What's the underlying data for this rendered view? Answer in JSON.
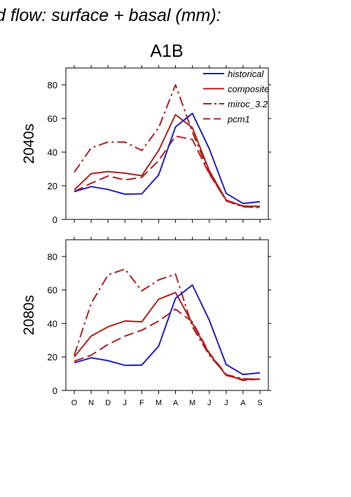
{
  "figure": {
    "title": "d flow: surface + basal (mm):",
    "scenario": "A1B"
  },
  "colors": {
    "historical": "#1f1fbf",
    "projection": "#b21e1e",
    "axis": "#000000"
  },
  "chart_data": [
    {
      "type": "line",
      "panel_label": "2040s",
      "categories": [
        "O",
        "N",
        "D",
        "J",
        "F",
        "M",
        "A",
        "M",
        "J",
        "J",
        "A",
        "S"
      ],
      "ylim": [
        0,
        90
      ],
      "yticks": [
        "0",
        "20",
        "40",
        "60",
        "80"
      ],
      "grid": false,
      "legend": "top-right",
      "series": [
        {
          "name": "historical",
          "style": "solid",
          "color": "#1f1fbf",
          "values": [
            16.5,
            19.5,
            17.8,
            15.0,
            15.2,
            26.5,
            55.0,
            63.0,
            42.0,
            15.5,
            9.5,
            10.5
          ]
        },
        {
          "name": "composite",
          "style": "solid",
          "color": "#b21e1e",
          "values": [
            17.5,
            27.2,
            28.4,
            27.5,
            26.0,
            41.0,
            62.3,
            54.5,
            29.0,
            11.5,
            7.8,
            7.8
          ]
        },
        {
          "name": "miroc_3.2",
          "style": "dashdot",
          "color": "#b21e1e",
          "values": [
            28.0,
            42.5,
            46.0,
            46.0,
            41.0,
            54.5,
            80.0,
            52.0,
            27.5,
            11.0,
            7.5,
            7.0
          ]
        },
        {
          "name": "pcm1",
          "style": "dashed",
          "color": "#b21e1e",
          "values": [
            16.5,
            21.5,
            25.8,
            23.5,
            25.0,
            35.0,
            49.5,
            47.5,
            27.0,
            11.5,
            8.0,
            7.5
          ]
        }
      ]
    },
    {
      "type": "line",
      "panel_label": "2080s",
      "categories": [
        "O",
        "N",
        "D",
        "J",
        "F",
        "M",
        "A",
        "M",
        "J",
        "J",
        "A",
        "S"
      ],
      "ylim": [
        0,
        90
      ],
      "yticks": [
        "0",
        "20",
        "40",
        "60",
        "80"
      ],
      "grid": false,
      "series": [
        {
          "name": "historical",
          "style": "solid",
          "color": "#1f1fbf",
          "values": [
            16.5,
            19.5,
            17.8,
            15.0,
            15.2,
            26.5,
            55.0,
            63.0,
            42.0,
            15.5,
            9.5,
            10.5
          ]
        },
        {
          "name": "composite",
          "style": "solid",
          "color": "#b21e1e",
          "values": [
            20.0,
            32.5,
            38.0,
            41.5,
            41.0,
            54.5,
            58.5,
            40.0,
            22.0,
            9.0,
            6.5,
            6.8
          ]
        },
        {
          "name": "miroc_3.2",
          "style": "dashdot",
          "color": "#b21e1e",
          "values": [
            21.0,
            52.0,
            69.0,
            72.5,
            59.5,
            66.0,
            69.5,
            38.0,
            21.0,
            9.5,
            7.0,
            6.8
          ]
        },
        {
          "name": "pcm1",
          "style": "dashed",
          "color": "#b21e1e",
          "values": [
            17.5,
            21.0,
            27.5,
            32.5,
            36.0,
            41.5,
            48.5,
            41.0,
            22.5,
            9.5,
            6.0,
            6.8
          ]
        }
      ]
    }
  ]
}
